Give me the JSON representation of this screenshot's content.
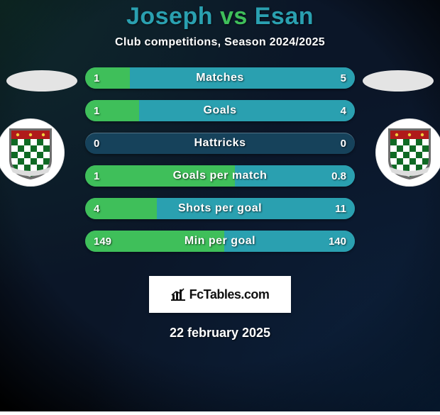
{
  "background": {
    "base_color": "#0b1628",
    "vignette_color": "#000000",
    "spotlight_left": "#123a2e88",
    "spotlight_right": "#0c2a4e88"
  },
  "title": {
    "player1": "Joseph",
    "vs": "vs",
    "player2": "Esan",
    "player1_color": "#2aa0b0",
    "vs_color": "#3fbf5a",
    "player2_color": "#2aa0b0",
    "fontsize": 34
  },
  "subtitle": {
    "text": "Club competitions, Season 2024/2025",
    "fontsize": 16
  },
  "left_player": {
    "ellipse_color": "#e4e4e4",
    "accent_color": "#3fbf5a"
  },
  "right_player": {
    "ellipse_color": "#e4e4e4",
    "accent_color": "#2aa0b0"
  },
  "crest": {
    "shield_border": "#6d6d6d",
    "field_green": "#0f6a24",
    "field_white": "#ffffff",
    "top_red": "#b01a1a",
    "banner_color": "#dcdcdc",
    "ball_color": "#efcf3d"
  },
  "bars": {
    "track_color": "#16425b",
    "left_color": "#3fbf5a",
    "right_color": "#2aa0b0",
    "rows": [
      {
        "label": "Matches",
        "left_val": "1",
        "right_val": "5",
        "left_pct": 16.7,
        "right_pct": 83.3
      },
      {
        "label": "Goals",
        "left_val": "1",
        "right_val": "4",
        "left_pct": 20.0,
        "right_pct": 80.0
      },
      {
        "label": "Hattricks",
        "left_val": "0",
        "right_val": "0",
        "left_pct": 0.0,
        "right_pct": 0.0
      },
      {
        "label": "Goals per match",
        "left_val": "1",
        "right_val": "0.8",
        "left_pct": 55.6,
        "right_pct": 44.4
      },
      {
        "label": "Shots per goal",
        "left_val": "4",
        "right_val": "11",
        "left_pct": 26.7,
        "right_pct": 73.3
      },
      {
        "label": "Min per goal",
        "left_val": "149",
        "right_val": "140",
        "left_pct": 51.6,
        "right_pct": 48.4
      }
    ]
  },
  "brandbox": {
    "icon_color": "#111111",
    "text_fc": "Fc",
    "text_rest": "Tables.com"
  },
  "date": "22 february 2025"
}
